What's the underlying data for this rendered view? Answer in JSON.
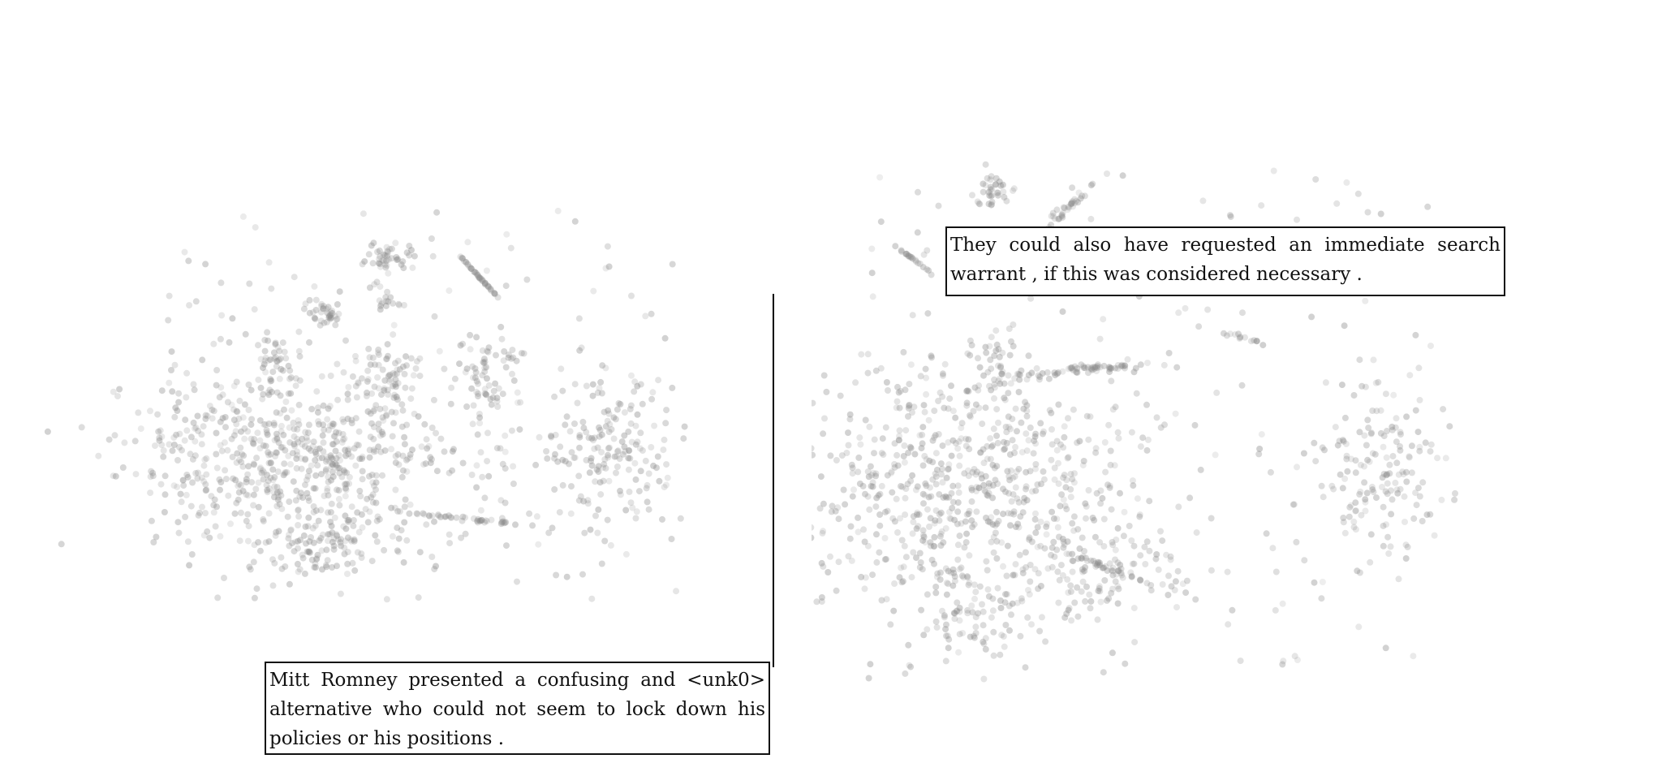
{
  "chart_data": [
    {
      "type": "scatter",
      "title": "",
      "xlabel": "",
      "ylabel": "",
      "grid": false,
      "legend": "none",
      "point_color": "#8a8a8a",
      "annotation": "Mitt Romney presented a confusing and <unk0> alternative who could not seem to lock down his policies or his positions .",
      "clusters": [
        {
          "center": [
            0.28,
            0.62
          ],
          "spread": [
            0.14,
            0.09
          ],
          "count": 650,
          "shape": "blob"
        },
        {
          "center": [
            0.33,
            0.8
          ],
          "spread": [
            0.07,
            0.03
          ],
          "count": 90,
          "shape": "blob"
        },
        {
          "center": [
            0.82,
            0.61
          ],
          "spread": [
            0.06,
            0.07
          ],
          "count": 150,
          "shape": "blob"
        },
        {
          "center": [
            0.44,
            0.46
          ],
          "spread": [
            0.025,
            0.03
          ],
          "count": 60,
          "shape": "blob"
        },
        {
          "center": [
            0.62,
            0.45
          ],
          "spread": [
            0.03,
            0.045
          ],
          "count": 60,
          "shape": "blob"
        },
        {
          "center": [
            0.44,
            0.22
          ],
          "spread": [
            0.018,
            0.015
          ],
          "count": 40,
          "shape": "blob"
        },
        {
          "center": [
            0.59,
            0.25
          ],
          "spread": [
            0.03,
            0.01
          ],
          "count": 40,
          "shape": "streak"
        },
        {
          "center": [
            0.33,
            0.33
          ],
          "spread": [
            0.02,
            0.015
          ],
          "count": 35,
          "shape": "blob"
        },
        {
          "center": [
            0.25,
            0.42
          ],
          "spread": [
            0.015,
            0.025
          ],
          "count": 30,
          "shape": "blob"
        },
        {
          "center": [
            0.57,
            0.74
          ],
          "spread": [
            0.02,
            0.06
          ],
          "count": 45,
          "shape": "streak"
        },
        {
          "center": [
            0.44,
            0.31
          ],
          "spread": [
            0.015,
            0.008
          ],
          "count": 15,
          "shape": "blob"
        }
      ]
    },
    {
      "type": "scatter",
      "title": "",
      "xlabel": "",
      "ylabel": "",
      "grid": false,
      "legend": "none",
      "point_color": "#8a8a8a",
      "annotation": "They could also have requested an immediate search warrant , if this was considered necessary .",
      "clusters": [
        {
          "center": [
            0.21,
            0.62
          ],
          "spread": [
            0.13,
            0.09
          ],
          "count": 650,
          "shape": "blob"
        },
        {
          "center": [
            0.23,
            0.8
          ],
          "spread": [
            0.05,
            0.03
          ],
          "count": 80,
          "shape": "blob"
        },
        {
          "center": [
            0.42,
            0.75
          ],
          "spread": [
            0.06,
            0.04
          ],
          "count": 80,
          "shape": "blob"
        },
        {
          "center": [
            0.86,
            0.59
          ],
          "spread": [
            0.05,
            0.06
          ],
          "count": 150,
          "shape": "blob"
        },
        {
          "center": [
            0.25,
            0.16
          ],
          "spread": [
            0.015,
            0.015
          ],
          "count": 35,
          "shape": "blob"
        },
        {
          "center": [
            0.37,
            0.18
          ],
          "spread": [
            0.025,
            0.01
          ],
          "count": 35,
          "shape": "streak"
        },
        {
          "center": [
            0.25,
            0.43
          ],
          "spread": [
            0.02,
            0.03
          ],
          "count": 50,
          "shape": "blob"
        },
        {
          "center": [
            0.4,
            0.43
          ],
          "spread": [
            0.03,
            0.05
          ],
          "count": 60,
          "shape": "streak"
        },
        {
          "center": [
            0.12,
            0.26
          ],
          "spread": [
            0.01,
            0.02
          ],
          "count": 20,
          "shape": "streak"
        },
        {
          "center": [
            0.63,
            0.38
          ],
          "spread": [
            0.015,
            0.03
          ],
          "count": 15,
          "shape": "streak"
        },
        {
          "center": [
            0.41,
            0.73
          ],
          "spread": [
            0.01,
            0.05
          ],
          "count": 30,
          "shape": "streak"
        }
      ]
    }
  ]
}
